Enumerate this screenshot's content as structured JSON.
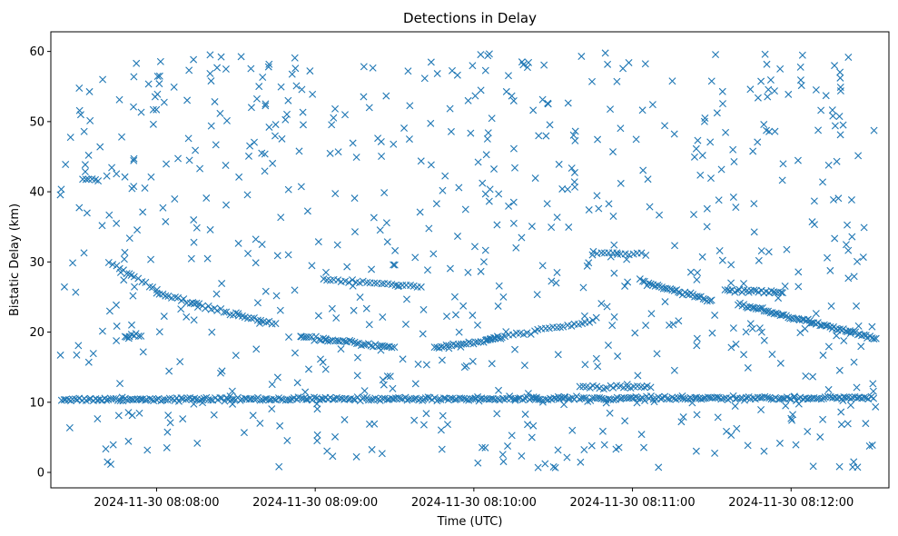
{
  "chart_data": {
    "type": "scatter",
    "title": "Detections in Delay",
    "xlabel": "Time (UTC)",
    "ylabel": "Bistatic Delay (km)",
    "marker": "x",
    "color": "#1f77b4",
    "grid": false,
    "legend": "none",
    "x_range": [
      "2024-11-30 08:07:20",
      "2024-11-30 08:12:37"
    ],
    "ylim": [
      -2.2,
      62.8
    ],
    "x_ticks": [
      "2024-11-30 08:08:00",
      "2024-11-30 08:09:00",
      "2024-11-30 08:10:00",
      "2024-11-30 08:11:00",
      "2024-11-30 08:12:00"
    ],
    "y_ticks": [
      0,
      10,
      20,
      30,
      40,
      50,
      60
    ],
    "tracks": [
      {
        "x_start": "2024-11-30 08:07:24",
        "x_end": "2024-11-30 08:12:31",
        "y_start": 10.4,
        "y_end": 10.6,
        "count": 360
      },
      {
        "x_start": "2024-11-30 08:07:42",
        "x_end": "2024-11-30 08:08:00",
        "y_start": 30.0,
        "y_end": 26.0,
        "count": 14
      },
      {
        "x_start": "2024-11-30 08:08:00",
        "x_end": "2024-11-30 08:08:45",
        "y_start": 25.5,
        "y_end": 21.0,
        "count": 40
      },
      {
        "x_start": "2024-11-30 08:08:55",
        "x_end": "2024-11-30 08:09:30",
        "y_start": 19.3,
        "y_end": 17.8,
        "count": 40
      },
      {
        "x_start": "2024-11-30 08:09:03",
        "x_end": "2024-11-30 08:09:40",
        "y_start": 27.5,
        "y_end": 26.5,
        "count": 28
      },
      {
        "x_start": "2024-11-30 08:09:45",
        "x_end": "2024-11-30 08:10:10",
        "y_start": 17.8,
        "y_end": 19.0,
        "count": 28
      },
      {
        "x_start": "2024-11-30 08:10:05",
        "x_end": "2024-11-30 08:10:45",
        "y_start": 19.0,
        "y_end": 21.5,
        "count": 30
      },
      {
        "x_start": "2024-11-30 08:10:45",
        "x_end": "2024-11-30 08:11:05",
        "y_start": 31.4,
        "y_end": 31.0,
        "count": 14
      },
      {
        "x_start": "2024-11-30 08:11:03",
        "x_end": "2024-11-30 08:11:30",
        "y_start": 27.2,
        "y_end": 24.5,
        "count": 35
      },
      {
        "x_start": "2024-11-30 08:11:40",
        "x_end": "2024-11-30 08:12:32",
        "y_start": 24.0,
        "y_end": 19.1,
        "count": 70
      },
      {
        "x_start": "2024-11-30 08:11:35",
        "x_end": "2024-11-30 08:11:57",
        "y_start": 26.0,
        "y_end": 25.6,
        "count": 25
      },
      {
        "x_start": "2024-11-30 08:10:40",
        "x_end": "2024-11-30 08:11:07",
        "y_start": 12.2,
        "y_end": 12.2,
        "count": 22
      },
      {
        "x_start": "2024-11-30 08:07:32",
        "x_end": "2024-11-30 08:07:38",
        "y_start": 41.8,
        "y_end": 41.6,
        "count": 6
      },
      {
        "x_start": "2024-11-30 08:07:48",
        "x_end": "2024-11-30 08:07:54",
        "y_start": 19.4,
        "y_end": 19.4,
        "count": 8
      }
    ],
    "scatter_noise": {
      "x_start": "2024-11-30 08:07:23",
      "x_end": "2024-11-30 08:12:32",
      "y_min": 0.5,
      "y_max": 59.8,
      "count": 720
    }
  }
}
